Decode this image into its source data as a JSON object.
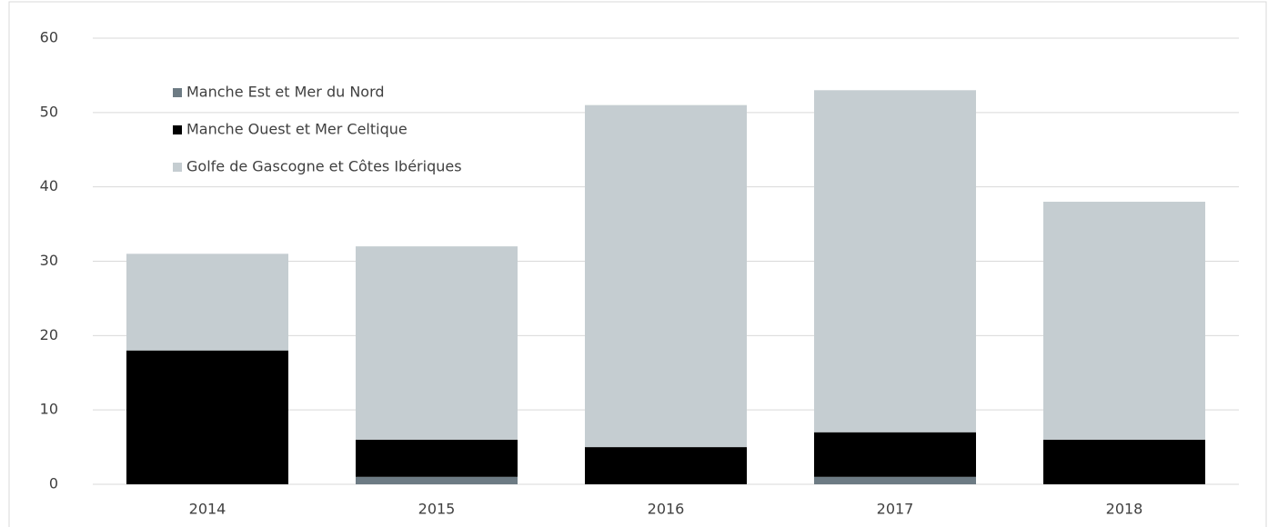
{
  "chart_data": {
    "type": "bar",
    "stacked": true,
    "categories": [
      "2014",
      "2015",
      "2016",
      "2017",
      "2018"
    ],
    "series": [
      {
        "name": "Manche Est et Mer du Nord",
        "color": "#6d7b84",
        "values": [
          0,
          1,
          0,
          1,
          0
        ]
      },
      {
        "name": "Manche Ouest et Mer Celtique",
        "color": "#000000",
        "values": [
          18,
          5,
          5,
          6,
          6
        ]
      },
      {
        "name": "Golfe de Gascogne et Côtes Ibériques",
        "color": "#c5cdd1",
        "values": [
          13,
          26,
          46,
          46,
          32
        ]
      }
    ],
    "ylim": [
      0,
      60
    ],
    "yticks": [
      0,
      10,
      20,
      30,
      40,
      50,
      60
    ],
    "grid": true,
    "legend": "top-left"
  }
}
